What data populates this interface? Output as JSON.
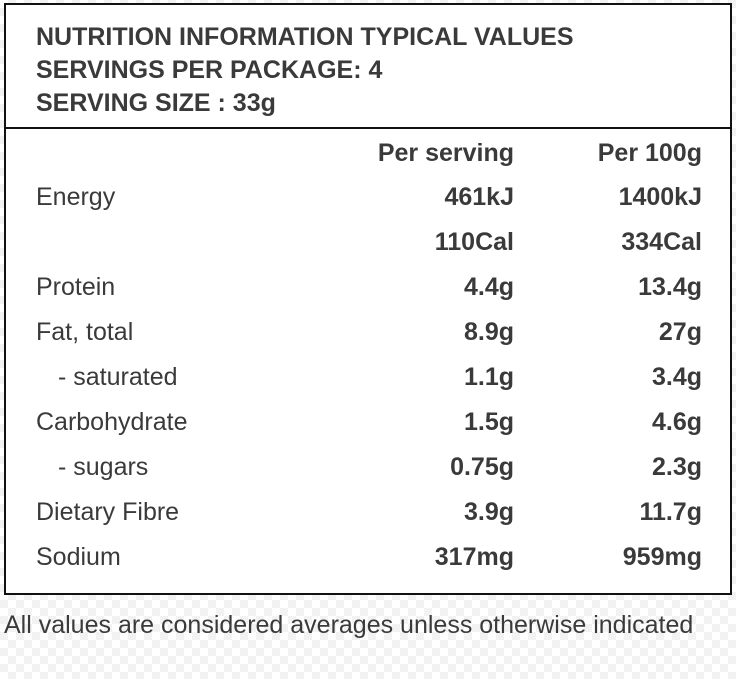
{
  "header": {
    "title": "NUTRITION INFORMATION TYPICAL VALUES",
    "servings": "SERVINGS PER PACKAGE: 4",
    "serving_size": "SERVING SIZE : 33g"
  },
  "columns": {
    "per_serving": "Per serving",
    "per_100g": "Per 100g"
  },
  "rows": [
    {
      "label": "Energy",
      "per_serving": "461kJ",
      "per_100g": "1400kJ"
    },
    {
      "label": "",
      "per_serving": "110Cal",
      "per_100g": "334Cal"
    },
    {
      "label": "Protein",
      "per_serving": "4.4g",
      "per_100g": "13.4g"
    },
    {
      "label": "Fat, total",
      "per_serving": "8.9g",
      "per_100g": "27g"
    },
    {
      "label": "- saturated",
      "per_serving": "1.1g",
      "per_100g": "3.4g"
    },
    {
      "label": "Carbohydrate",
      "per_serving": "1.5g",
      "per_100g": "4.6g"
    },
    {
      "label": "- sugars",
      "per_serving": "0.75g",
      "per_100g": "2.3g"
    },
    {
      "label": "Dietary Fibre",
      "per_serving": "3.9g",
      "per_100g": "11.7g"
    },
    {
      "label": "Sodium",
      "per_serving": "317mg",
      "per_100g": "959mg"
    }
  ],
  "footer": {
    "note": "All values are considered averages unless otherwise indicated"
  }
}
